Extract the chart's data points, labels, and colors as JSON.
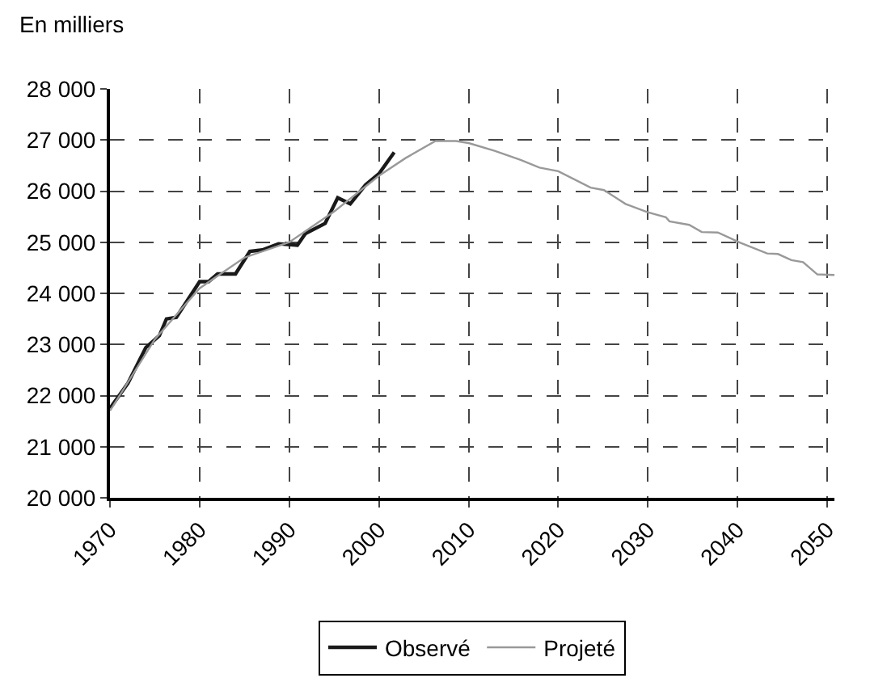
{
  "chart_data": {
    "type": "line",
    "ylabel": "En milliers",
    "series": [
      {
        "name": "Observé",
        "color": "#1a1a1a",
        "x": [
          1970,
          1972,
          1973,
          1974,
          1975.5,
          1976.3,
          1977.4,
          1980,
          1981,
          1982,
          1984,
          1985.6,
          1987,
          1988.8,
          1990.9,
          1991.8,
          1994,
          1995.4,
          1996.8,
          1998.5,
          2000,
          2001.7
        ],
        "values": [
          21750,
          22240,
          22590,
          22940,
          23170,
          23500,
          23530,
          24230,
          24230,
          24380,
          24380,
          24820,
          24850,
          24970,
          24940,
          25170,
          25370,
          25870,
          25750,
          26120,
          26340,
          26760
        ]
      },
      {
        "name": "Projeté",
        "color": "#999999",
        "x": [
          1970,
          1975,
          1980,
          1985,
          1990,
          1995,
          2000,
          2003,
          2006.3,
          2008.6,
          2010,
          2012.9,
          2015.8,
          2017.9,
          2020,
          2023.6,
          2025.1,
          2027.5,
          2029.9,
          2032,
          2032.4,
          2034.6,
          2036,
          2037.8,
          2040.3,
          2043.3,
          2044.5,
          2046,
          2047.3,
          2048.9,
          2050.8
        ],
        "values": [
          21700,
          23100,
          24100,
          24700,
          25000,
          25600,
          26300,
          26650,
          26980,
          26980,
          26940,
          26790,
          26610,
          26460,
          26390,
          26070,
          26020,
          25750,
          25590,
          25490,
          25410,
          25340,
          25200,
          25190,
          24990,
          24780,
          24770,
          24650,
          24610,
          24370,
          24360
        ]
      }
    ],
    "xlim": [
      1970,
      2050.8
    ],
    "xticks": [
      1970,
      1980,
      1990,
      2000,
      2010,
      2020,
      2030,
      2040,
      2050
    ],
    "ylim": [
      20000,
      28000
    ],
    "yticks": [
      {
        "value": 20000,
        "label": "20 000"
      },
      {
        "value": 21000,
        "label": "21 000"
      },
      {
        "value": 22000,
        "label": "22 000"
      },
      {
        "value": 23000,
        "label": "23 000"
      },
      {
        "value": 24000,
        "label": "24 000"
      },
      {
        "value": 25000,
        "label": "25 000"
      },
      {
        "value": 26000,
        "label": "26 000"
      },
      {
        "value": 27000,
        "label": "27 000"
      },
      {
        "value": 28000,
        "label": "28 000"
      }
    ],
    "grid": true,
    "legend": "bottom",
    "line_style": "solid",
    "marker": "none"
  }
}
